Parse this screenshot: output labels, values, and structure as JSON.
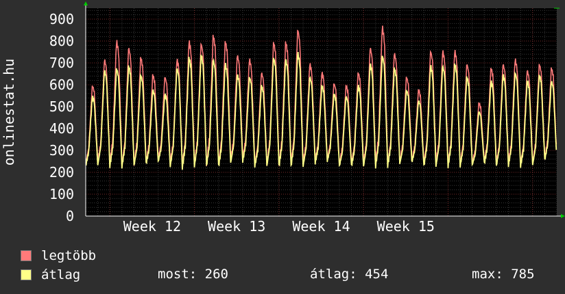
{
  "chart_data": {
    "type": "line",
    "ylabel": "onlinestat.hu",
    "xlabel": "",
    "ylim": [
      0,
      950
    ],
    "yticks": [
      0,
      100,
      200,
      300,
      400,
      500,
      600,
      700,
      800,
      900
    ],
    "xticks": [
      "Week 12",
      "Week 13",
      "Week 14",
      "Week 15"
    ],
    "grid": true,
    "legend_position": "bottom-left",
    "days": 39,
    "series": [
      {
        "name": "legtöbb",
        "color": "#ff7a7a",
        "daily_peak": [
          600,
          720,
          805,
          775,
          730,
          650,
          640,
          720,
          805,
          795,
          830,
          805,
          740,
          720,
          660,
          800,
          800,
          860,
          700,
          660,
          610,
          600,
          660,
          775,
          870,
          750,
          640,
          580,
          760,
          760,
          760,
          700,
          520,
          680,
          700,
          720,
          670,
          700,
          680
        ],
        "daily_min": [
          240,
          245,
          240,
          235,
          240,
          250,
          260,
          240,
          235,
          238,
          240,
          238,
          255,
          262,
          240,
          240,
          238,
          238,
          240,
          255,
          262,
          240,
          240,
          238,
          238,
          240,
          250,
          258,
          240,
          240,
          240,
          238,
          245,
          250,
          240,
          242,
          240,
          245,
          265
        ]
      },
      {
        "name": "átlag",
        "color": "#ffff88",
        "daily_peak": [
          550,
          670,
          680,
          690,
          650,
          580,
          560,
          680,
          730,
          740,
          720,
          700,
          650,
          640,
          600,
          730,
          720,
          750,
          640,
          600,
          560,
          550,
          600,
          700,
          740,
          680,
          580,
          530,
          690,
          690,
          700,
          640,
          480,
          620,
          650,
          660,
          620,
          650,
          620
        ],
        "daily_min": [
          230,
          232,
          228,
          225,
          230,
          238,
          248,
          228,
          222,
          226,
          228,
          226,
          243,
          250,
          228,
          228,
          226,
          226,
          228,
          243,
          250,
          228,
          228,
          226,
          226,
          228,
          238,
          246,
          228,
          228,
          228,
          226,
          233,
          238,
          228,
          230,
          228,
          233,
          255
        ]
      }
    ]
  },
  "legend": {
    "items": [
      {
        "label": "legtöbb",
        "color": "#ff7a7a"
      },
      {
        "label": "átlag",
        "color": "#ffff88"
      }
    ]
  },
  "stats": {
    "most_label": "most:",
    "most_value": "260",
    "atlag_label": "átlag:",
    "atlag_value": "454",
    "max_label": "max:",
    "max_value": "785"
  }
}
